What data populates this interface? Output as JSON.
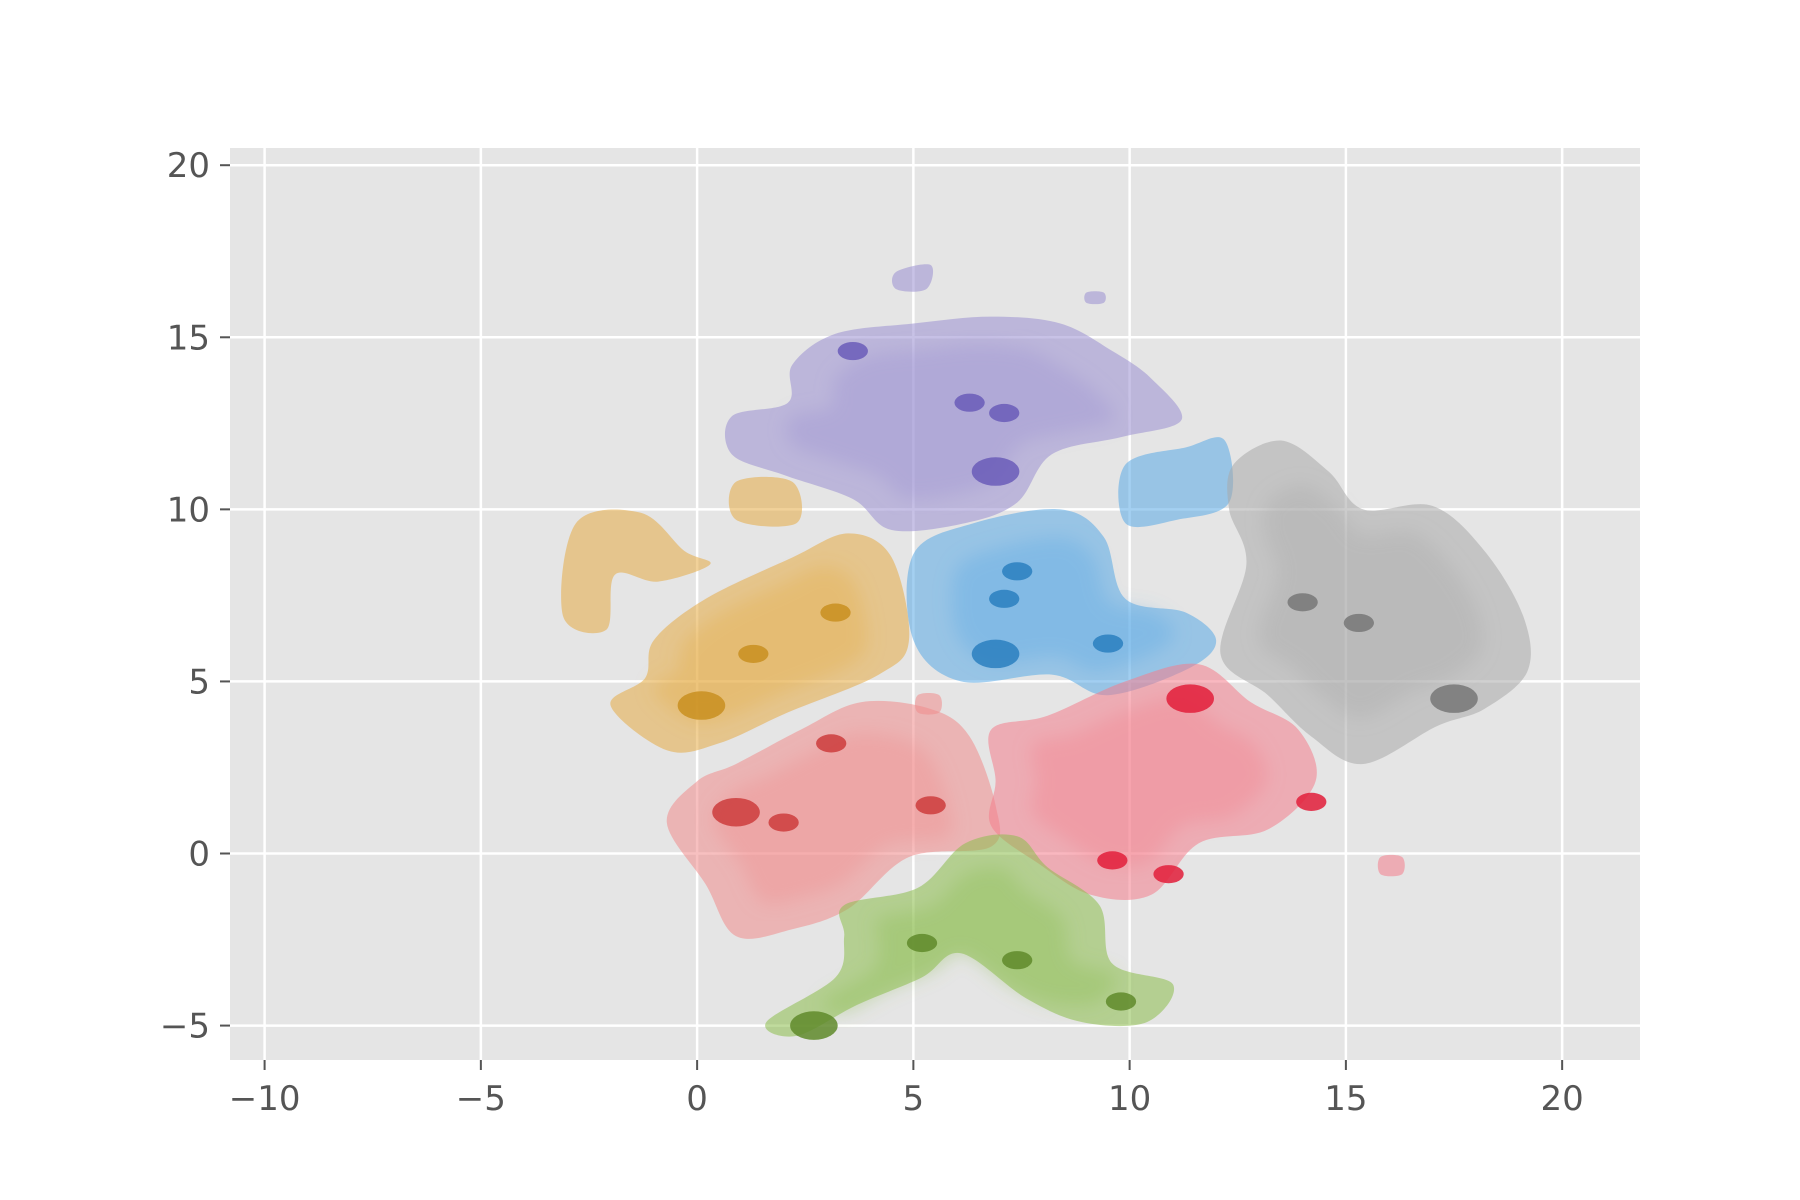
{
  "chart_data": {
    "type": "density",
    "title": "",
    "xlabel": "",
    "ylabel": "",
    "xlim": [
      -10.8,
      21.8
    ],
    "ylim": [
      -6.0,
      20.5
    ],
    "xticks": [
      -10,
      -5,
      0,
      5,
      10,
      15,
      20
    ],
    "yticks": [
      -5,
      0,
      5,
      10,
      15,
      20
    ],
    "xtick_labels": [
      "−10",
      "−5",
      "0",
      "5",
      "10",
      "15",
      "20"
    ],
    "ytick_labels": [
      "−5",
      "0",
      "5",
      "10",
      "15",
      "20"
    ],
    "grid": true,
    "legend": "none",
    "style": {
      "plot_background": "#e5e5e5",
      "grid_color": "#ffffff",
      "tick_label_color": "#555555"
    },
    "series": [
      {
        "color": "#9b8fd2",
        "dark": "#6a5cb8",
        "outline": [
          [
            2.2,
            14.2
          ],
          [
            3.2,
            15.1
          ],
          [
            5.0,
            15.4
          ],
          [
            6.8,
            15.6
          ],
          [
            8.4,
            15.4
          ],
          [
            9.6,
            14.6
          ],
          [
            10.5,
            13.8
          ],
          [
            11.2,
            12.6
          ],
          [
            9.8,
            12.1
          ],
          [
            8.2,
            11.6
          ],
          [
            7.4,
            10.2
          ],
          [
            6.2,
            9.6
          ],
          [
            4.5,
            9.4
          ],
          [
            3.6,
            10.3
          ],
          [
            2.0,
            11.0
          ],
          [
            0.8,
            11.6
          ],
          [
            0.8,
            12.7
          ],
          [
            2.1,
            13.1
          ]
        ],
        "hotspots": [
          [
            6.9,
            11.1
          ],
          [
            6.3,
            13.1
          ],
          [
            7.1,
            12.8
          ],
          [
            3.6,
            14.6
          ]
        ],
        "islands": [
          [
            [
              4.6,
              16.9
            ],
            [
              5.4,
              17.1
            ],
            [
              5.3,
              16.4
            ],
            [
              4.6,
              16.4
            ]
          ],
          [
            [
              9.0,
              16.3
            ],
            [
              9.4,
              16.3
            ],
            [
              9.4,
              16.0
            ],
            [
              9.0,
              16.0
            ]
          ]
        ]
      },
      {
        "color": "#5aa9e6",
        "dark": "#2a7fc0",
        "outline": [
          [
            5.0,
            8.7
          ],
          [
            6.4,
            9.6
          ],
          [
            8.4,
            10.0
          ],
          [
            9.4,
            9.2
          ],
          [
            9.9,
            7.4
          ],
          [
            11.3,
            7.0
          ],
          [
            12.0,
            6.2
          ],
          [
            11.4,
            5.4
          ],
          [
            9.5,
            4.6
          ],
          [
            8.2,
            5.2
          ],
          [
            6.1,
            5.0
          ],
          [
            5.0,
            6.2
          ]
        ],
        "hotspots": [
          [
            6.9,
            5.8
          ],
          [
            7.1,
            7.4
          ],
          [
            9.5,
            6.1
          ],
          [
            7.4,
            8.2
          ]
        ],
        "islands": [
          [
            [
              9.9,
              11.3
            ],
            [
              11.3,
              11.8
            ],
            [
              12.2,
              12.0
            ],
            [
              12.3,
              10.2
            ],
            [
              11.1,
              9.7
            ],
            [
              9.9,
              9.6
            ]
          ]
        ]
      },
      {
        "color": "#aaaaaa",
        "dark": "#777777",
        "outline": [
          [
            12.4,
            11.3
          ],
          [
            13.5,
            12.0
          ],
          [
            14.6,
            11.1
          ],
          [
            15.4,
            10.0
          ],
          [
            17.0,
            10.1
          ],
          [
            18.2,
            8.8
          ],
          [
            19.1,
            6.9
          ],
          [
            19.2,
            5.3
          ],
          [
            18.2,
            4.2
          ],
          [
            17.1,
            3.7
          ],
          [
            15.4,
            2.6
          ],
          [
            14.2,
            3.4
          ],
          [
            13.2,
            4.6
          ],
          [
            12.1,
            5.8
          ],
          [
            12.7,
            8.4
          ],
          [
            12.3,
            10.0
          ]
        ],
        "hotspots": [
          [
            17.5,
            4.5
          ],
          [
            15.3,
            6.7
          ],
          [
            14.0,
            7.3
          ]
        ],
        "islands": []
      },
      {
        "color": "#e5ab45",
        "dark": "#c98f20",
        "outline": [
          [
            -1.0,
            6.2
          ],
          [
            0.2,
            7.4
          ],
          [
            2.2,
            8.6
          ],
          [
            3.5,
            9.3
          ],
          [
            4.5,
            8.6
          ],
          [
            4.9,
            6.2
          ],
          [
            4.2,
            5.2
          ],
          [
            2.1,
            4.1
          ],
          [
            0.5,
            3.2
          ],
          [
            -0.7,
            3.0
          ],
          [
            -2.0,
            4.3
          ],
          [
            -1.2,
            5.1
          ]
        ],
        "hotspots": [
          [
            0.1,
            4.3
          ],
          [
            3.2,
            7.0
          ],
          [
            1.3,
            5.8
          ]
        ],
        "islands": [
          [
            [
              0.9,
              10.8
            ],
            [
              2.2,
              10.8
            ],
            [
              2.3,
              9.6
            ],
            [
              0.9,
              9.7
            ]
          ],
          [
            [
              -2.8,
              9.6
            ],
            [
              -1.3,
              9.9
            ],
            [
              -0.3,
              8.8
            ],
            [
              0.3,
              8.4
            ],
            [
              -0.9,
              7.9
            ],
            [
              -1.9,
              8.1
            ],
            [
              -2.1,
              6.5
            ],
            [
              -3.1,
              6.9
            ]
          ]
        ]
      },
      {
        "color": "#f08c8c",
        "dark": "#cc3c3c",
        "outline": [
          [
            0.9,
            2.6
          ],
          [
            2.4,
            3.6
          ],
          [
            3.8,
            4.4
          ],
          [
            5.4,
            4.2
          ],
          [
            6.3,
            3.4
          ],
          [
            6.9,
            1.4
          ],
          [
            6.8,
            0.2
          ],
          [
            4.9,
            -0.1
          ],
          [
            3.5,
            -1.6
          ],
          [
            2.2,
            -2.2
          ],
          [
            0.9,
            -2.4
          ],
          [
            0.2,
            -0.9
          ],
          [
            -0.7,
            0.9
          ],
          [
            0.0,
            2.1
          ]
        ],
        "hotspots": [
          [
            0.9,
            1.2
          ],
          [
            3.1,
            3.2
          ],
          [
            2.0,
            0.9
          ],
          [
            5.4,
            1.4
          ]
        ],
        "islands": [
          [
            [
              5.1,
              4.6
            ],
            [
              5.6,
              4.6
            ],
            [
              5.6,
              4.1
            ],
            [
              5.1,
              4.1
            ]
          ]
        ]
      },
      {
        "color": "#f47e8c",
        "dark": "#e21d3a",
        "outline": [
          [
            6.8,
            3.6
          ],
          [
            8.1,
            4.0
          ],
          [
            9.9,
            5.0
          ],
          [
            11.6,
            5.5
          ],
          [
            12.8,
            4.4
          ],
          [
            13.9,
            3.6
          ],
          [
            14.3,
            2.1
          ],
          [
            13.2,
            0.7
          ],
          [
            11.6,
            0.3
          ],
          [
            10.5,
            -1.2
          ],
          [
            9.1,
            -1.2
          ],
          [
            7.9,
            -0.3
          ],
          [
            6.8,
            0.8
          ],
          [
            6.9,
            2.1
          ]
        ],
        "hotspots": [
          [
            11.4,
            4.5
          ],
          [
            9.6,
            -0.2
          ],
          [
            10.9,
            -0.6
          ],
          [
            14.2,
            1.5
          ]
        ],
        "islands": [
          [
            [
              15.8,
              -0.1
            ],
            [
              16.3,
              -0.1
            ],
            [
              16.3,
              -0.6
            ],
            [
              15.8,
              -0.6
            ]
          ]
        ]
      },
      {
        "color": "#8dbd4c",
        "dark": "#5f8a2a",
        "outline": [
          [
            3.4,
            -1.5
          ],
          [
            5.1,
            -1.0
          ],
          [
            6.2,
            0.3
          ],
          [
            7.4,
            0.5
          ],
          [
            8.1,
            -0.4
          ],
          [
            9.3,
            -1.5
          ],
          [
            9.6,
            -3.2
          ],
          [
            11.0,
            -3.8
          ],
          [
            10.4,
            -4.9
          ],
          [
            8.9,
            -4.9
          ],
          [
            7.6,
            -4.2
          ],
          [
            6.1,
            -2.9
          ],
          [
            5.2,
            -3.6
          ],
          [
            3.7,
            -4.4
          ],
          [
            2.3,
            -5.3
          ],
          [
            1.6,
            -4.9
          ],
          [
            3.2,
            -3.6
          ],
          [
            3.4,
            -2.4
          ]
        ],
        "hotspots": [
          [
            2.7,
            -5.0
          ],
          [
            5.2,
            -2.6
          ],
          [
            9.8,
            -4.3
          ],
          [
            7.4,
            -3.1
          ]
        ],
        "islands": []
      }
    ]
  }
}
